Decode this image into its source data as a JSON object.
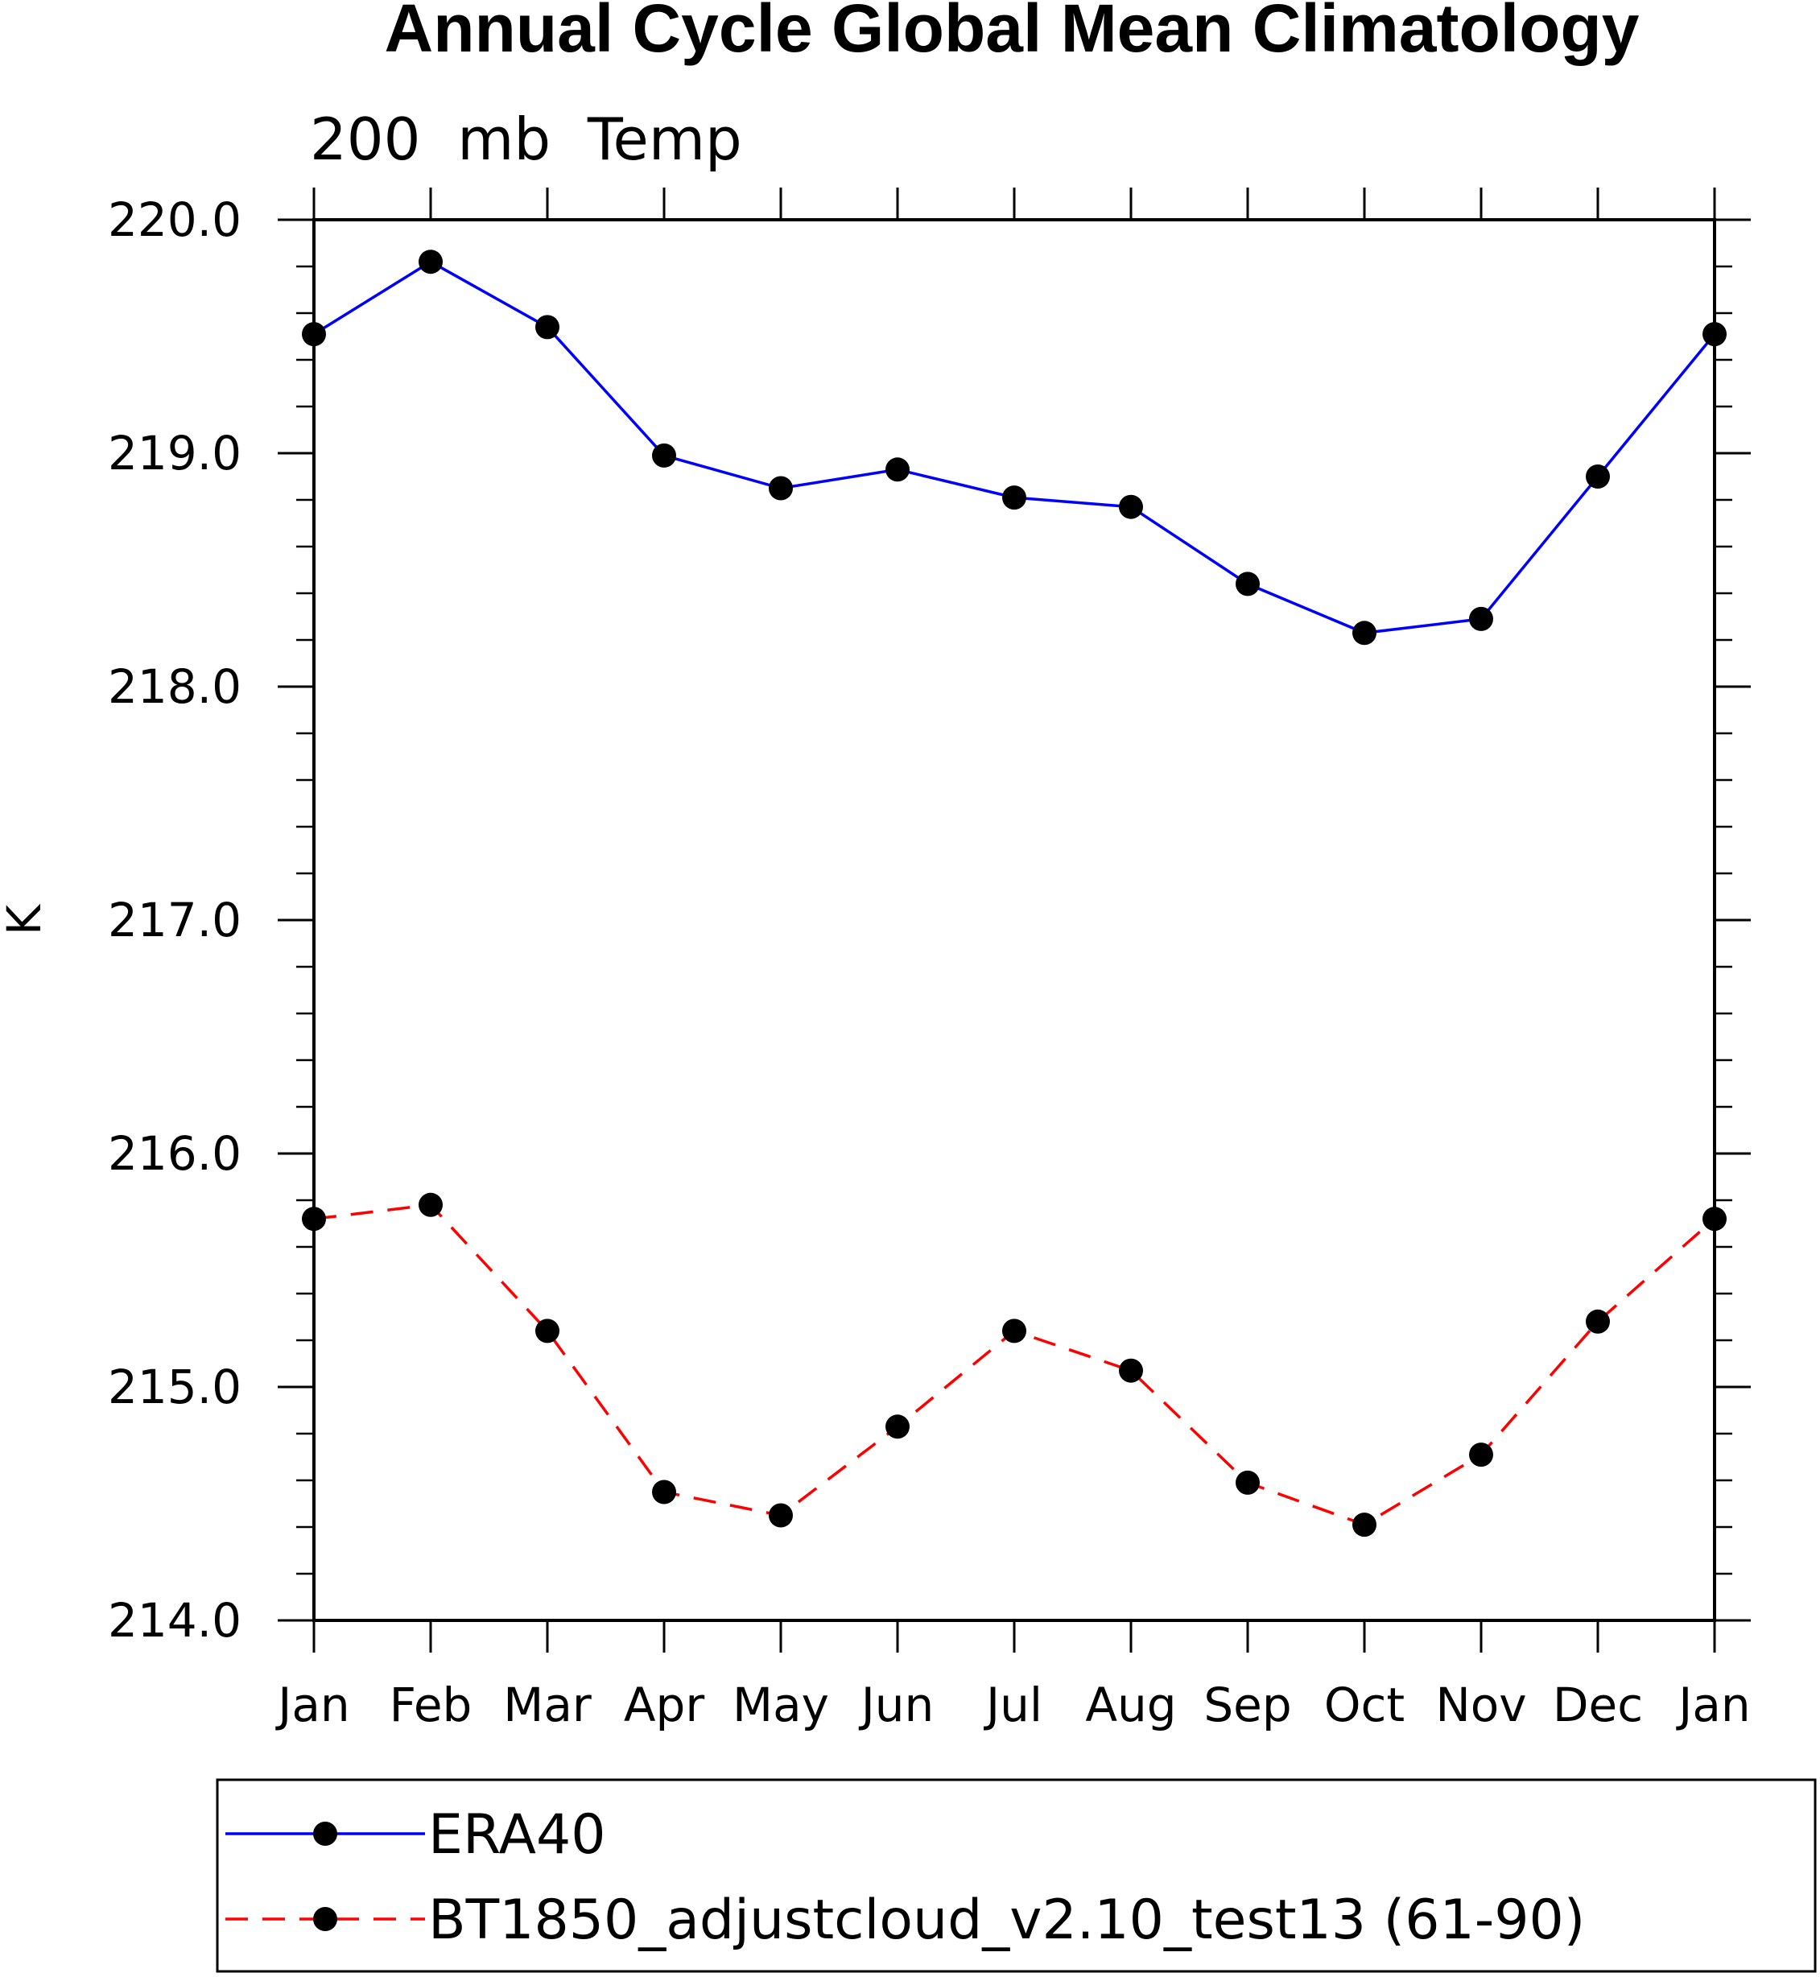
{
  "chart_data": {
    "type": "line",
    "title": "Annual Cycle Global Mean Climatology",
    "subtitle": "200  mb  Temp",
    "xlabel": "",
    "ylabel": "K",
    "categories": [
      "Jan",
      "Feb",
      "Mar",
      "Apr",
      "May",
      "Jun",
      "Jul",
      "Aug",
      "Sep",
      "Oct",
      "Nov",
      "Dec",
      "Jan"
    ],
    "ylim": [
      214.0,
      220.0
    ],
    "yticks": [
      "214.0",
      "215.0",
      "216.0",
      "217.0",
      "218.0",
      "219.0",
      "220.0"
    ],
    "series": [
      {
        "name": "ERA40",
        "color": "#0000ff",
        "dashed": false,
        "values": [
          219.51,
          219.82,
          219.54,
          218.99,
          218.85,
          218.93,
          218.81,
          218.77,
          218.44,
          218.23,
          218.29,
          218.9,
          219.51
        ]
      },
      {
        "name": "BT1850_adjustcloud_v2.10_test13 (61-90)",
        "color": "#ff0000",
        "dashed": true,
        "values": [
          215.72,
          215.78,
          215.24,
          214.55,
          214.45,
          214.83,
          215.24,
          215.07,
          214.59,
          214.41,
          214.71,
          215.28,
          215.72
        ]
      }
    ],
    "marker": "filled-circle",
    "legend_position": "bottom"
  }
}
